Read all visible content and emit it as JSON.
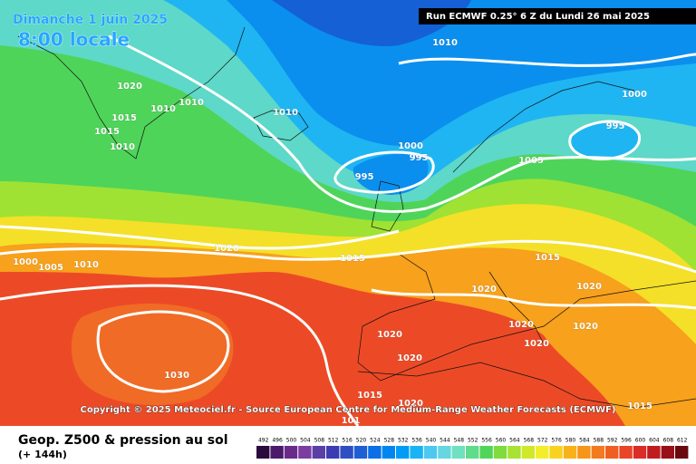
{
  "header": {
    "date": "Dimanche 1 juin 2025",
    "time": "8:00 locale",
    "run": "Run ECMWF 0.25° 6 Z du Lundi 26 mai 2025"
  },
  "map": {
    "copyright": "Copyright © 2025 Meteociel.fr - Source European Centre for Medium-Range Weather Forecasts (ECMWF)",
    "isobar_labels": [
      1020,
      1015,
      1010,
      1010,
      1015,
      1010,
      1010,
      1010,
      1000,
      995,
      995,
      1000,
      995,
      1005,
      1020,
      1000,
      1005,
      1010,
      1015,
      1015,
      1020,
      1020,
      1020,
      1020,
      1020,
      1020,
      1020,
      1030,
      1015,
      1020,
      1015,
      101
    ]
  },
  "footer": {
    "title": "Geop. Z500 & pression au sol",
    "lead_time": "(+ 144h)"
  },
  "legend": {
    "ticks": [
      492,
      496,
      500,
      504,
      508,
      512,
      516,
      520,
      524,
      528,
      532,
      536,
      540,
      544,
      548,
      552,
      556,
      560,
      564,
      568,
      572,
      576,
      580,
      584,
      588,
      592,
      596,
      600,
      604,
      608,
      612
    ],
    "colors": [
      "#2b0a3d",
      "#4b1a6a",
      "#6a2a8a",
      "#7d3da0",
      "#5a3fa6",
      "#3c3cb3",
      "#2e4fc2",
      "#1f5fd6",
      "#0b6fe6",
      "#0086f0",
      "#009cf5",
      "#1ab3f5",
      "#4dc8f0",
      "#66d6e0",
      "#6fe0c0",
      "#5fdc8a",
      "#4fd65a",
      "#7fdc3c",
      "#a8e232",
      "#d0e82a",
      "#f3ee2a",
      "#f9d21f",
      "#f9b21a",
      "#f79518",
      "#f37a1e",
      "#ef5f22",
      "#e94526",
      "#dc2c26",
      "#c01c20",
      "#9a1018",
      "#6a0810"
    ]
  }
}
